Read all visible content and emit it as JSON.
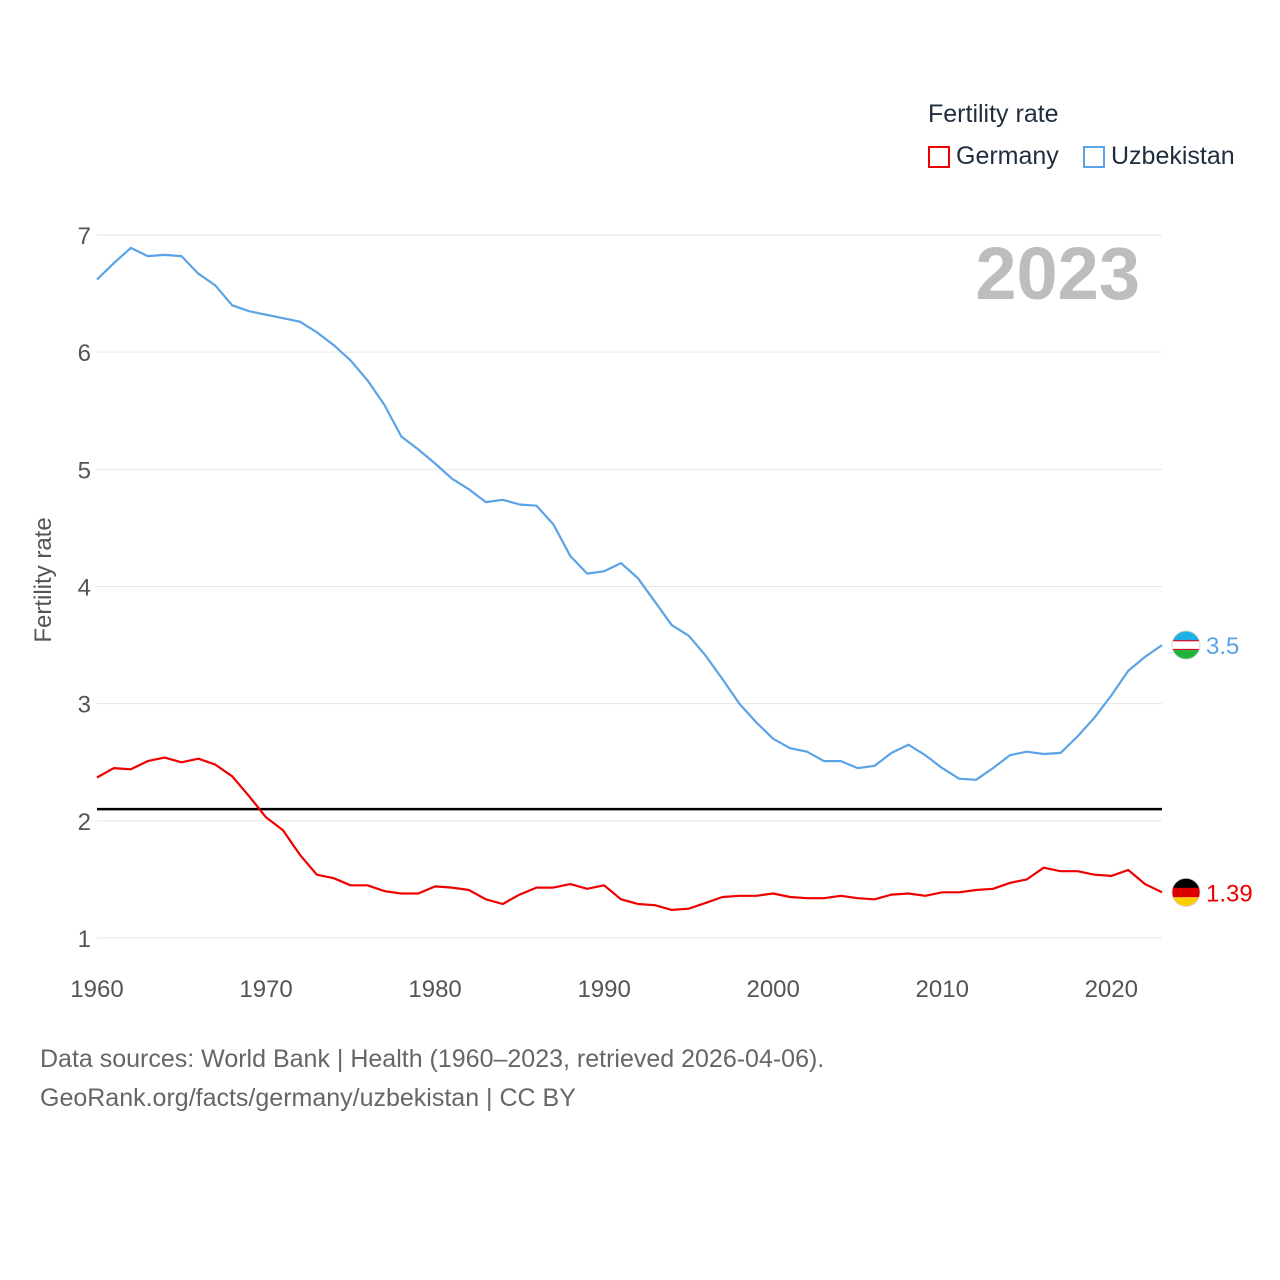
{
  "colors": {
    "germany": "#ee0000",
    "uzbekistan": "#5aa3e6",
    "threshold": "#000000",
    "grid": "#e6e6e6",
    "tick": "#555555",
    "year_watermark": "#bdbdbd"
  },
  "legend": {
    "title": "Fertility rate",
    "items": [
      {
        "label": "Germany",
        "color": "#ee0000"
      },
      {
        "label": "Uzbekistan",
        "color": "#5aa3e6"
      }
    ]
  },
  "footer": {
    "line1": "Data sources: World Bank | Health (1960–2023, retrieved 2026-04-06).",
    "line2": "GeoRank.org/facts/germany/uzbekistan | CC BY"
  },
  "chart_data": {
    "type": "line",
    "title": "",
    "watermark_year": "2023",
    "xlabel": "",
    "ylabel": "Fertility rate",
    "xlim": [
      1960,
      2023
    ],
    "ylim": [
      1,
      7
    ],
    "x_ticks": [
      1960,
      1970,
      1980,
      1990,
      2000,
      2010,
      2020
    ],
    "y_ticks": [
      1,
      2,
      3,
      4,
      5,
      6,
      7
    ],
    "grid": true,
    "reference_line": {
      "y": 2.1,
      "color": "#000000"
    },
    "x": [
      1960,
      1961,
      1962,
      1963,
      1964,
      1965,
      1966,
      1967,
      1968,
      1969,
      1970,
      1971,
      1972,
      1973,
      1974,
      1975,
      1976,
      1977,
      1978,
      1979,
      1980,
      1981,
      1982,
      1983,
      1984,
      1985,
      1986,
      1987,
      1988,
      1989,
      1990,
      1991,
      1992,
      1993,
      1994,
      1995,
      1996,
      1997,
      1998,
      1999,
      2000,
      2001,
      2002,
      2003,
      2004,
      2005,
      2006,
      2007,
      2008,
      2009,
      2010,
      2011,
      2012,
      2013,
      2014,
      2015,
      2016,
      2017,
      2018,
      2019,
      2020,
      2021,
      2022,
      2023
    ],
    "series": [
      {
        "name": "Germany",
        "color": "#ee0000",
        "end_label": "1.39",
        "values": [
          2.37,
          2.45,
          2.44,
          2.51,
          2.54,
          2.5,
          2.53,
          2.48,
          2.38,
          2.21,
          2.03,
          1.92,
          1.71,
          1.54,
          1.51,
          1.45,
          1.45,
          1.4,
          1.38,
          1.38,
          1.44,
          1.43,
          1.41,
          1.33,
          1.29,
          1.37,
          1.43,
          1.43,
          1.46,
          1.42,
          1.45,
          1.33,
          1.29,
          1.28,
          1.24,
          1.25,
          1.3,
          1.35,
          1.36,
          1.36,
          1.38,
          1.35,
          1.34,
          1.34,
          1.36,
          1.34,
          1.33,
          1.37,
          1.38,
          1.36,
          1.39,
          1.39,
          1.41,
          1.42,
          1.47,
          1.5,
          1.6,
          1.57,
          1.57,
          1.54,
          1.53,
          1.58,
          1.46,
          1.39
        ]
      },
      {
        "name": "Uzbekistan",
        "color": "#5aa3e6",
        "end_label": "3.5",
        "values": [
          6.62,
          6.76,
          6.89,
          6.82,
          6.83,
          6.82,
          6.67,
          6.57,
          6.4,
          6.35,
          6.32,
          6.29,
          6.26,
          6.17,
          6.06,
          5.93,
          5.76,
          5.55,
          5.28,
          5.17,
          5.05,
          4.92,
          4.83,
          4.72,
          4.74,
          4.7,
          4.69,
          4.53,
          4.26,
          4.11,
          4.13,
          4.2,
          4.07,
          3.87,
          3.67,
          3.58,
          3.41,
          3.21,
          3.0,
          2.84,
          2.7,
          2.62,
          2.59,
          2.51,
          2.51,
          2.45,
          2.47,
          2.58,
          2.65,
          2.56,
          2.45,
          2.36,
          2.35,
          2.45,
          2.56,
          2.59,
          2.57,
          2.58,
          2.72,
          2.88,
          3.07,
          3.28,
          3.4,
          3.5
        ]
      }
    ]
  }
}
